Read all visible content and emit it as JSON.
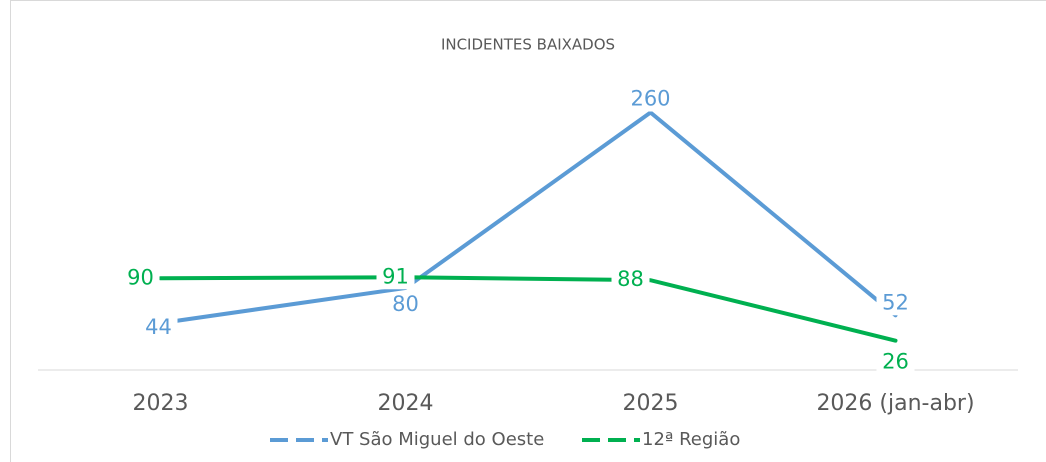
{
  "chart_data": {
    "type": "line",
    "title": "INCIDENTES BAIXADOS",
    "categories": [
      "2023",
      "2024",
      "2025",
      "2026 (jan-abr)"
    ],
    "series": [
      {
        "name": "VT São Miguel do Oeste",
        "color": "#5b9bd5",
        "values": [
          44,
          80,
          260,
          52
        ]
      },
      {
        "name": "12ª Região",
        "color": "#00b050",
        "values": [
          90,
          91,
          88,
          26
        ]
      }
    ],
    "ylim": [
      0,
      280
    ],
    "grid": false,
    "legend": "bottom"
  }
}
